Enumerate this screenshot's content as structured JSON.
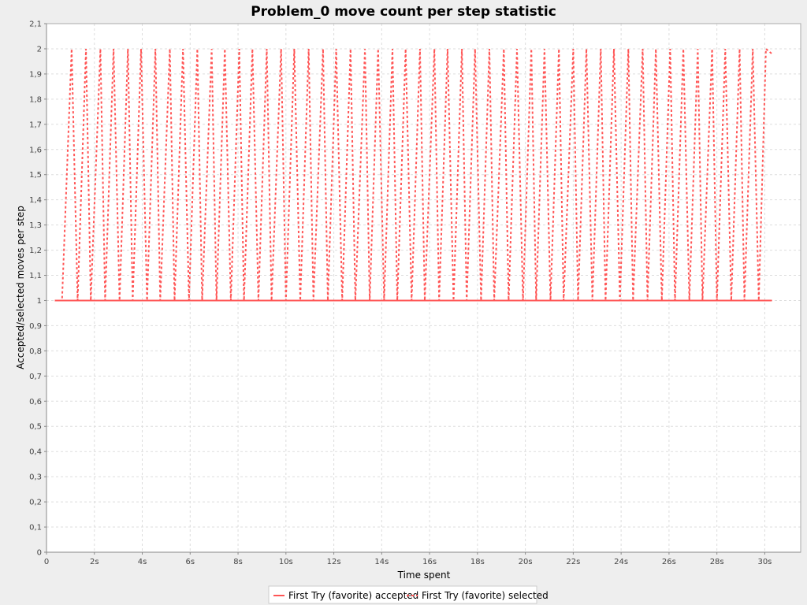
{
  "chart_data": {
    "type": "line",
    "title": "Problem_0 move count per step statistic",
    "xlabel": "Time spent",
    "ylabel": "Accepted/selected moves per step",
    "xlim": [
      0,
      31.5
    ],
    "ylim": [
      0,
      2.1
    ],
    "x_ticks": [
      "0",
      "2s",
      "4s",
      "6s",
      "8s",
      "10s",
      "12s",
      "14s",
      "16s",
      "18s",
      "20s",
      "22s",
      "24s",
      "26s",
      "28s",
      "30s"
    ],
    "y_ticks": [
      "0",
      "0,1",
      "0,2",
      "0,3",
      "0,4",
      "0,5",
      "0,6",
      "0,7",
      "0,8",
      "0,9",
      "1",
      "1,1",
      "1,2",
      "1,3",
      "1,4",
      "1,5",
      "1,6",
      "1,7",
      "1,8",
      "1,9",
      "2",
      "2,1"
    ],
    "grid": true,
    "legend_position": "bottom",
    "series": [
      {
        "name": "First Try (favorite) accepted",
        "style": "solid",
        "color": "#ff5555",
        "x": [
          0.35,
          30.3
        ],
        "y": [
          1,
          1
        ]
      },
      {
        "name": "First Try (favorite) selected",
        "style": "dashed",
        "color": "#ff5555",
        "x": [
          0.35,
          0.65,
          1.05,
          1.3,
          1.65,
          1.85,
          2.25,
          2.45,
          2.8,
          3.05,
          3.4,
          3.6,
          3.95,
          4.2,
          4.55,
          4.75,
          5.15,
          5.35,
          5.7,
          5.95,
          6.3,
          6.5,
          6.9,
          7.1,
          7.45,
          7.7,
          8.05,
          8.25,
          8.6,
          8.85,
          9.2,
          9.4,
          9.8,
          10.0,
          10.35,
          10.6,
          10.95,
          11.15,
          11.55,
          11.75,
          12.1,
          12.35,
          12.7,
          12.9,
          13.3,
          13.5,
          13.85,
          14.1,
          14.45,
          14.65,
          15.0,
          15.25,
          15.6,
          15.8,
          16.2,
          16.4,
          16.75,
          17.0,
          17.35,
          17.55,
          17.9,
          18.15,
          18.5,
          18.7,
          19.1,
          19.3,
          19.65,
          19.9,
          20.25,
          20.45,
          20.8,
          21.05,
          21.4,
          21.6,
          22.0,
          22.2,
          22.55,
          22.8,
          23.15,
          23.35,
          23.7,
          23.95,
          24.3,
          24.5,
          24.9,
          25.1,
          25.45,
          25.7,
          26.05,
          26.25,
          26.6,
          26.85,
          27.2,
          27.4,
          27.8,
          28.0,
          28.35,
          28.6,
          28.95,
          29.15,
          29.5,
          29.75,
          30.05,
          30.3
        ],
        "y": [
          1,
          1,
          2,
          1,
          2,
          1,
          2,
          1,
          2,
          1,
          2,
          1,
          2,
          1,
          2,
          1,
          2,
          1,
          2,
          1,
          2,
          1,
          2,
          1,
          2,
          1,
          2,
          1,
          2,
          1,
          2,
          1,
          2,
          1,
          2,
          1,
          2,
          1,
          2,
          1,
          2,
          1,
          2,
          1,
          2,
          1,
          2,
          1,
          2,
          1,
          2,
          1,
          2,
          1,
          2,
          1,
          2,
          1,
          2,
          1,
          2,
          1,
          2,
          1,
          2,
          1,
          2,
          1,
          2,
          1,
          2,
          1,
          2,
          1,
          2,
          1,
          2,
          1,
          2,
          1,
          2,
          1,
          2,
          1,
          2,
          1,
          2,
          1,
          2,
          1,
          2,
          1,
          2,
          1,
          2,
          1,
          2,
          1,
          2,
          1,
          2,
          1,
          2,
          1.98
        ]
      }
    ]
  }
}
